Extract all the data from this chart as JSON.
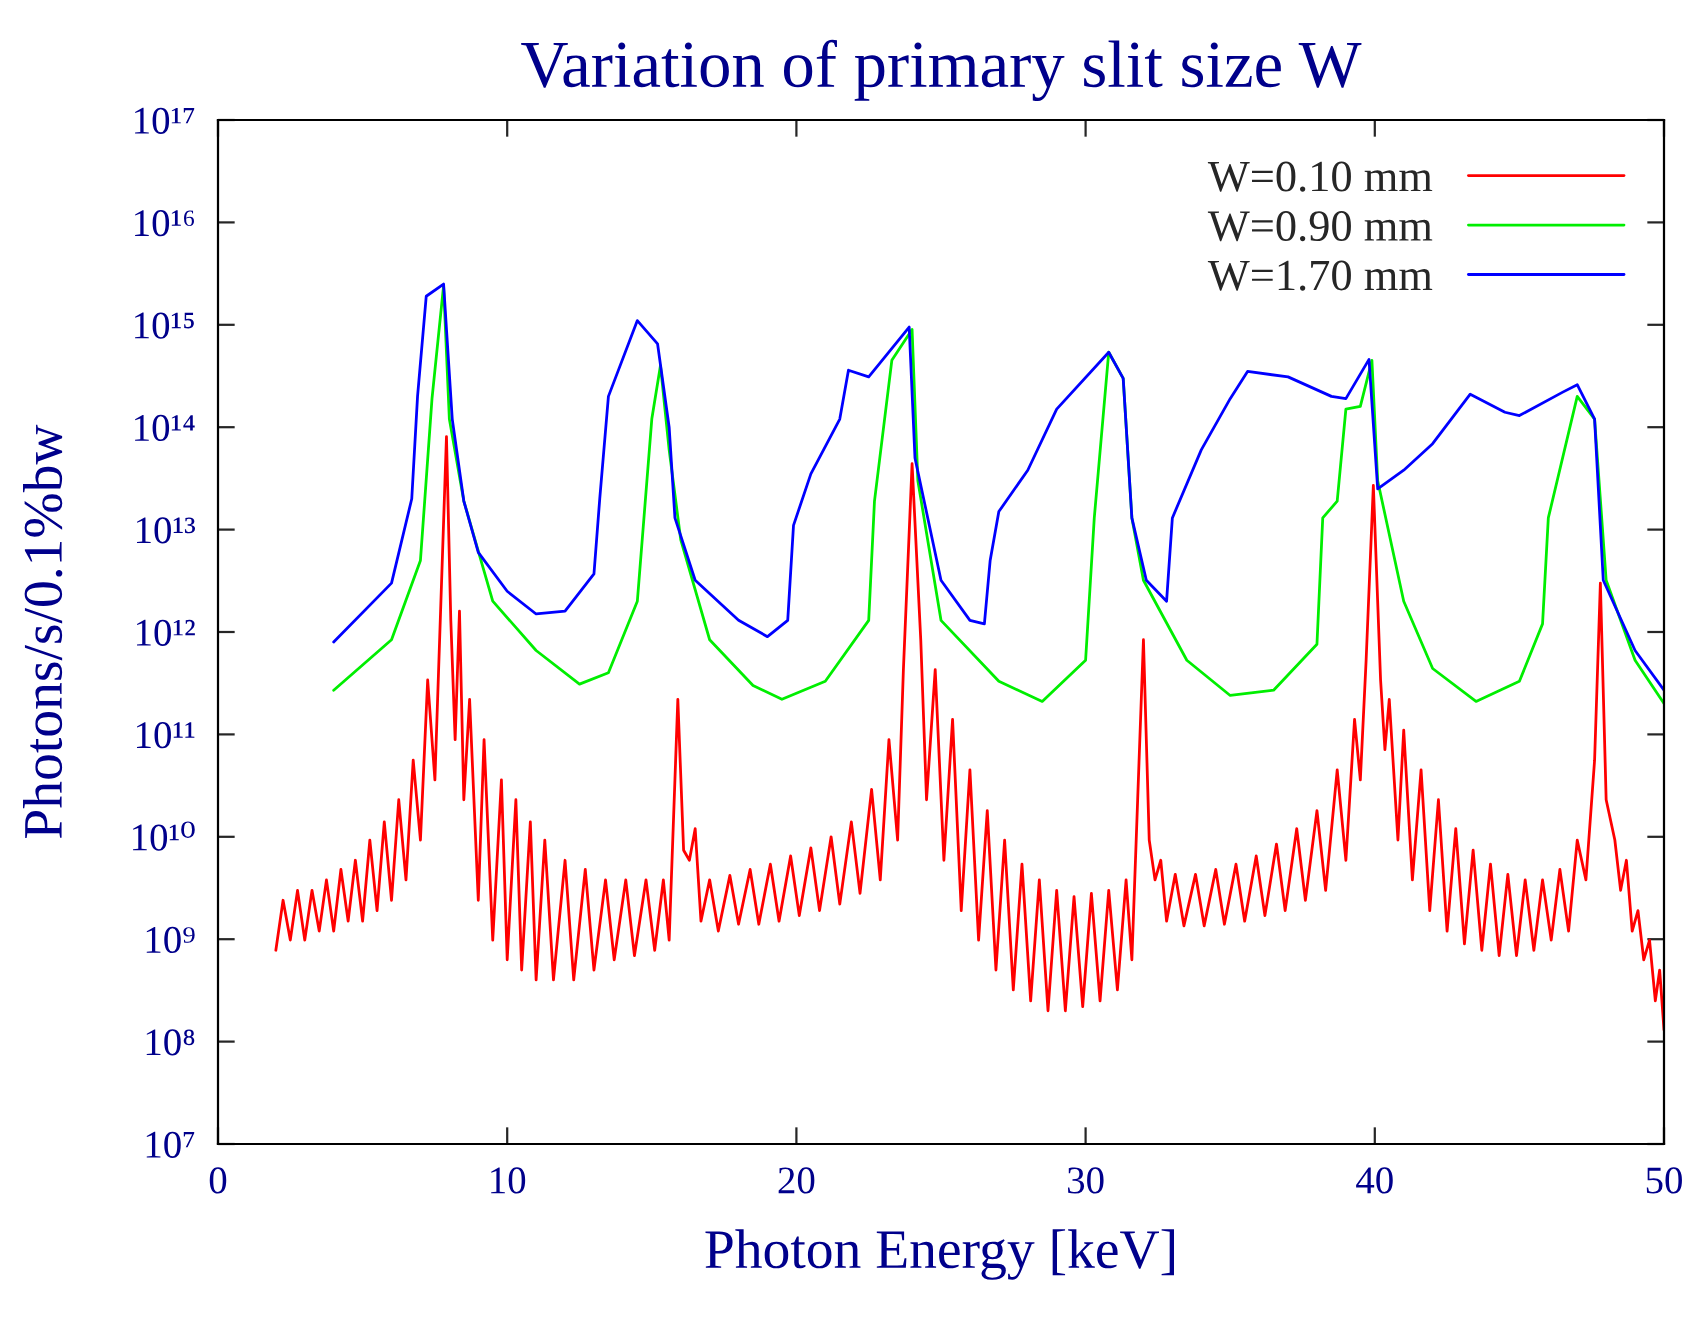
{
  "chart_data": {
    "type": "line",
    "title": "Variation of primary slit size W",
    "xlabel": "Photon Energy [keV]",
    "ylabel": "Photons/s/0.1%bw",
    "log": "y",
    "grid": false,
    "legend": "top right",
    "line_style": "solid",
    "marker": "none",
    "xlim": [
      0,
      50
    ],
    "xticks": [
      0,
      10,
      20,
      30,
      40,
      50
    ],
    "ylim": [
      10000000.0,
      1e+17
    ],
    "yticks": [
      {
        "value": 10000000.0,
        "label": "10⁷"
      },
      {
        "value": 100000000.0,
        "label": "10⁸"
      },
      {
        "value": 1000000000.0,
        "label": "10⁹"
      },
      {
        "value": 10000000000.0,
        "label": "10¹⁰"
      },
      {
        "value": 100000000000.0,
        "label": "10¹¹"
      },
      {
        "value": 1000000000000.0,
        "label": "10¹²"
      },
      {
        "value": 10000000000000.0,
        "label": "10¹³"
      },
      {
        "value": 100000000000000.0,
        "label": "10¹⁴"
      },
      {
        "value": 1000000000000000.0,
        "label": "10¹⁵"
      },
      {
        "value": 1e+16,
        "label": "10¹⁶"
      },
      {
        "value": 1e+17,
        "label": "10¹⁷"
      }
    ],
    "series": [
      {
        "name": "W=0.10 mm",
        "color": "#ff0000",
        "x": [
          2.0,
          2.25,
          2.5,
          2.75,
          3.0,
          3.25,
          3.5,
          3.75,
          4.0,
          4.25,
          4.5,
          4.75,
          5.0,
          5.25,
          5.5,
          5.75,
          6.0,
          6.25,
          6.5,
          6.75,
          7.0,
          7.25,
          7.5,
          7.9,
          8.05,
          8.2,
          8.35,
          8.5,
          8.7,
          9.0,
          9.2,
          9.5,
          9.8,
          10.0,
          10.3,
          10.5,
          10.8,
          11.0,
          11.3,
          11.6,
          12.0,
          12.3,
          12.7,
          13.0,
          13.4,
          13.7,
          14.1,
          14.4,
          14.8,
          15.1,
          15.4,
          15.6,
          15.9,
          16.1,
          16.3,
          16.5,
          16.7,
          17.0,
          17.3,
          17.7,
          18.0,
          18.4,
          18.7,
          19.1,
          19.4,
          19.8,
          20.1,
          20.5,
          20.8,
          21.2,
          21.5,
          21.9,
          22.2,
          22.6,
          22.9,
          23.2,
          23.5,
          23.7,
          24.0,
          24.3,
          24.5,
          24.8,
          25.1,
          25.4,
          25.7,
          26.0,
          26.3,
          26.6,
          26.9,
          27.2,
          27.5,
          27.8,
          28.1,
          28.4,
          28.7,
          29.0,
          29.3,
          29.6,
          29.9,
          30.2,
          30.5,
          30.8,
          31.1,
          31.4,
          31.6,
          31.8,
          32.0,
          32.2,
          32.4,
          32.6,
          32.8,
          33.1,
          33.4,
          33.8,
          34.1,
          34.5,
          34.8,
          35.2,
          35.5,
          35.9,
          36.2,
          36.6,
          36.9,
          37.3,
          37.6,
          38.0,
          38.3,
          38.7,
          39.0,
          39.3,
          39.5,
          39.7,
          39.95,
          40.2,
          40.35,
          40.5,
          40.8,
          41.0,
          41.3,
          41.6,
          41.9,
          42.2,
          42.5,
          42.8,
          43.1,
          43.4,
          43.7,
          44.0,
          44.3,
          44.6,
          44.9,
          45.2,
          45.5,
          45.8,
          46.1,
          46.4,
          46.7,
          47.0,
          47.3,
          47.6,
          47.8,
          48.0,
          48.3,
          48.5,
          48.7,
          48.9,
          49.1,
          49.3,
          49.5,
          49.7,
          49.85,
          50.0
        ],
        "values": [
          780000000.0,
          2400000000.0,
          980000000.0,
          3000000000.0,
          980000000.0,
          3000000000.0,
          1200000000.0,
          3800000000.0,
          1200000000.0,
          4800000000.0,
          1500000000.0,
          5900000000.0,
          1500000000.0,
          9300000000.0,
          1900000000.0,
          14000000000.0,
          2400000000.0,
          23000000000.0,
          3800000000.0,
          56000000000.0,
          9300000000.0,
          340000000000.0,
          36000000000.0,
          81000000000000.0,
          1300000000000.0,
          89000000000.0,
          1600000000000.0,
          23000000000.0,
          220000000000.0,
          2400000000.0,
          89000000000.0,
          980000000.0,
          36000000000.0,
          630000000.0,
          23000000000.0,
          500000000.0,
          14000000000.0,
          400000000.0,
          9300000000.0,
          400000000.0,
          5900000000.0,
          400000000.0,
          4800000000.0,
          500000000.0,
          3800000000.0,
          630000000.0,
          3800000000.0,
          690000000.0,
          3800000000.0,
          780000000.0,
          3800000000.0,
          980000000.0,
          220000000000.0,
          7400000000.0,
          5900000000.0,
          12000000000.0,
          1500000000.0,
          3800000000.0,
          1200000000.0,
          4200000000.0,
          1400000000.0,
          4800000000.0,
          1400000000.0,
          5400000000.0,
          1500000000.0,
          6500000000.0,
          1700000000.0,
          7800000000.0,
          1900000000.0,
          10000000000.0,
          2200000000.0,
          14000000000.0,
          2800000000.0,
          29000000000.0,
          3800000000.0,
          89000000000.0,
          9300000000.0,
          430000000000.0,
          44000000000000.0,
          840000000000.0,
          23000000000.0,
          430000000000.0,
          5900000000.0,
          140000000000.0,
          1900000000.0,
          45000000000.0,
          980000000.0,
          18000000000.0,
          500000000.0,
          9300000000.0,
          320000000.0,
          5400000000.0,
          250000000.0,
          3800000000.0,
          200000000.0,
          3000000000.0,
          200000000.0,
          2600000000.0,
          220000000.0,
          2800000000.0,
          250000000.0,
          3000000000.0,
          320000000.0,
          3800000000.0,
          630000000.0,
          23000000000.0,
          840000000000.0,
          9300000000.0,
          3800000000.0,
          5900000000.0,
          1500000000.0,
          4300000000.0,
          1350000000.0,
          4300000000.0,
          1350000000.0,
          4800000000.0,
          1400000000.0,
          5400000000.0,
          1500000000.0,
          6500000000.0,
          1700000000.0,
          8500000000.0,
          1900000000.0,
          12000000000.0,
          2400000000.0,
          18000000000.0,
          3000000000.0,
          45000000000.0,
          5900000000.0,
          140000000000.0,
          36000000000.0,
          530000000000.0,
          27000000000000.0,
          340000000000.0,
          71000000000.0,
          220000000000.0,
          9300000000.0,
          110000000000.0,
          3800000000.0,
          45000000000.0,
          1900000000.0,
          23000000000.0,
          1200000000.0,
          12000000000.0,
          900000000.0,
          7400000000.0,
          780000000.0,
          5400000000.0,
          690000000.0,
          4300000000.0,
          690000000.0,
          3800000000.0,
          780000000.0,
          3800000000.0,
          980000000.0,
          4800000000.0,
          1200000000.0,
          9300000000.0,
          3800000000.0,
          56000000000.0,
          3000000000000.0,
          23000000000.0,
          9300000000.0,
          3000000000.0,
          5900000000.0,
          1200000000.0,
          1900000000.0,
          630000000.0,
          980000000.0,
          250000000.0,
          500000000.0,
          130000000.0
        ]
      },
      {
        "name": "W=0.90 mm",
        "color": "#00ee00",
        "x": [
          4,
          6,
          7,
          7.4,
          7.8,
          8,
          8.5,
          9.5,
          11,
          12.5,
          13.5,
          14.5,
          15,
          15.3,
          15.6,
          16,
          17,
          18.5,
          19.5,
          21,
          22.5,
          22.7,
          23.3,
          24,
          24.2,
          25,
          27,
          28.5,
          30,
          30.3,
          30.8,
          31.3,
          31.6,
          32,
          33.5,
          35,
          36.5,
          38,
          38.2,
          38.7,
          39,
          39.5,
          39.9,
          40.1,
          41,
          42,
          43.5,
          45,
          45.8,
          46,
          47,
          47.6,
          48,
          49,
          50
        ],
        "values": [
          270000000000.0,
          840000000000.0,
          5000000000000.0,
          190000000000000.0,
          2400000000000000.0,
          120000000000000.0,
          19000000000000.0,
          2000000000000.0,
          660000000000.0,
          310000000000.0,
          400000000000.0,
          2000000000000.0,
          120000000000000.0,
          400000000000000.0,
          60000000000000.0,
          8000000000000.0,
          840000000000.0,
          300000000000.0,
          220000000000.0,
          330000000000.0,
          1300000000000.0,
          19000000000000.0,
          450000000000000.0,
          900000000000000.0,
          30000000000000.0,
          1300000000000.0,
          330000000000.0,
          210000000000.0,
          530000000000.0,
          13000000000000.0,
          540000000000000.0,
          300000000000000.0,
          13000000000000.0,
          3200000000000.0,
          530000000000.0,
          240000000000.0,
          270000000000.0,
          760000000000.0,
          13000000000000.0,
          19000000000000.0,
          150000000000000.0,
          160000000000000.0,
          450000000000000.0,
          30000000000000.0,
          2000000000000.0,
          440000000000.0,
          210000000000.0,
          330000000000.0,
          1200000000000.0,
          13000000000000.0,
          200000000000000.0,
          120000000000000.0,
          3200000000000.0,
          530000000000.0,
          200000000000.0
        ]
      },
      {
        "name": "W=1.70 mm",
        "color": "#0000ff",
        "x": [
          4,
          6,
          6.7,
          6.9,
          7.2,
          7.8,
          8.1,
          8.5,
          9,
          10,
          11,
          12,
          13,
          13.2,
          13.5,
          14.5,
          15.2,
          15.6,
          15.8,
          16.5,
          18,
          19,
          19.7,
          19.9,
          20.5,
          21.5,
          21.8,
          22.5,
          23.9,
          24.1,
          25,
          26,
          26.5,
          26.7,
          27,
          28,
          29,
          30.8,
          31.3,
          31.6,
          32.1,
          32.8,
          33,
          34,
          35,
          35.6,
          37,
          38.5,
          39,
          39.8,
          40.1,
          41,
          42,
          43.3,
          44.5,
          45,
          46.5,
          47,
          47.6,
          47.9,
          49,
          50
        ],
        "values": [
          800000000000.0,
          3000000000000.0,
          20000000000000.0,
          200000000000000.0,
          1900000000000000.0,
          2500000000000000.0,
          120000000000000.0,
          19000000000000.0,
          6000000000000.0,
          2500000000000.0,
          1500000000000.0,
          1600000000000.0,
          3700000000000.0,
          20000000000000.0,
          200000000000000.0,
          1100000000000000.0,
          650000000000000.0,
          100000000000000.0,
          13000000000000.0,
          3200000000000.0,
          1300000000000.0,
          900000000000.0,
          1300000000000.0,
          11000000000000.0,
          35000000000000.0,
          120000000000000.0,
          360000000000000.0,
          310000000000000.0,
          950000000000000.0,
          50000000000000.0,
          3200000000000.0,
          1300000000000.0,
          1200000000000.0,
          5000000000000.0,
          15000000000000.0,
          38000000000000.0,
          150000000000000.0,
          540000000000000.0,
          300000000000000.0,
          13000000000000.0,
          3200000000000.0,
          2000000000000.0,
          13000000000000.0,
          60000000000000.0,
          190000000000000.0,
          350000000000000.0,
          310000000000000.0,
          200000000000000.0,
          190000000000000.0,
          460000000000000.0,
          25000000000000.0,
          38000000000000.0,
          69000000000000.0,
          210000000000000.0,
          140000000000000.0,
          130000000000000.0,
          220000000000000.0,
          260000000000000.0,
          120000000000000.0,
          3200000000000.0,
          660000000000.0,
          270000000000.0
        ]
      }
    ]
  }
}
